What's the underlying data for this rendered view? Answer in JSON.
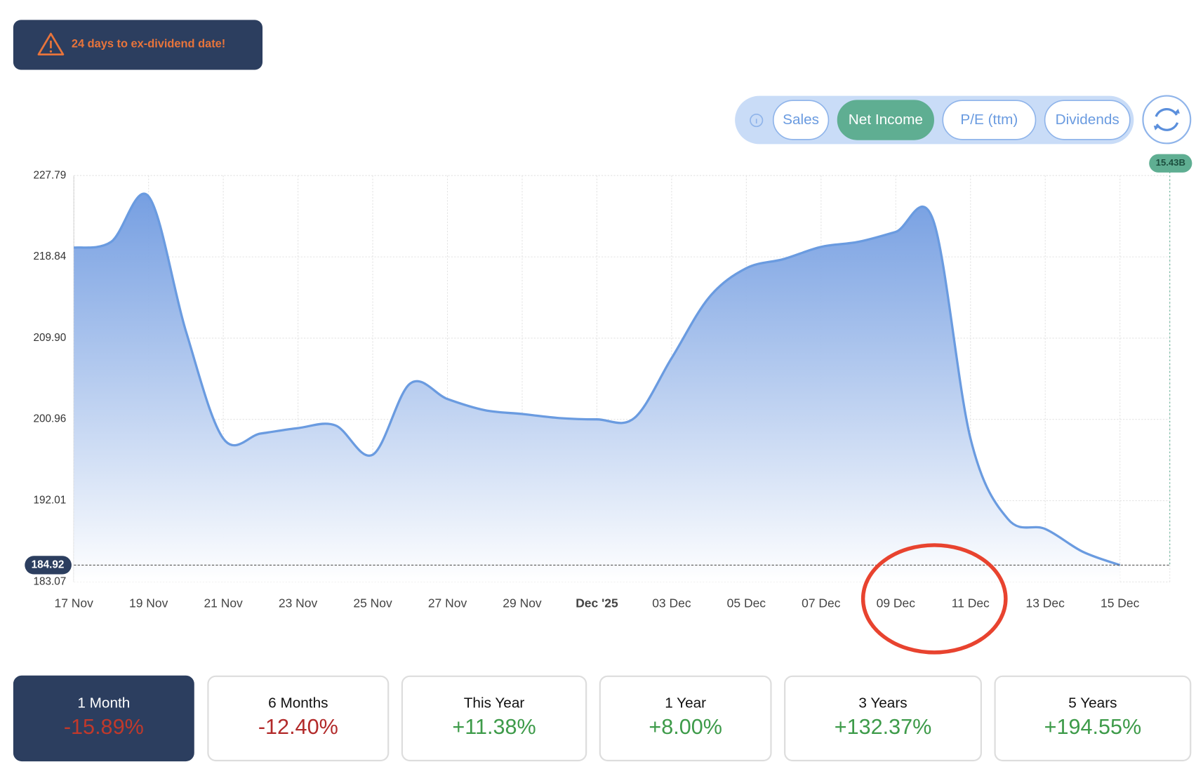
{
  "alert": {
    "text": "24 days to ex-dividend date!"
  },
  "toggles": [
    "Sales",
    "Net Income",
    "P/E (ttm)",
    "Dividends"
  ],
  "active_toggle": 1,
  "chart_data": {
    "type": "area",
    "categories": [
      "17 Nov",
      null,
      "19 Nov",
      null,
      "21 Nov",
      null,
      "23 Nov",
      null,
      "25 Nov",
      null,
      "27 Nov",
      null,
      "29 Nov",
      null,
      "Dec '25",
      null,
      "03 Dec",
      null,
      "05 Dec",
      null,
      "07 Dec",
      null,
      "09 Dec",
      null,
      "11 Dec",
      null,
      "13 Dec",
      null,
      "15 Dec"
    ],
    "values": [
      219.86,
      220.5,
      225.5,
      210.66,
      198.85,
      199.4,
      200.0,
      200.3,
      197.07,
      204.9,
      203.2,
      201.97,
      201.55,
      201.1,
      200.96,
      201.1,
      207.7,
      214.37,
      217.6,
      218.6,
      219.94,
      220.5,
      221.6,
      222.9,
      198.85,
      190.0,
      188.9,
      186.4,
      184.92
    ],
    "color": "#6a9be0",
    "ylim": [
      183.07,
      227.79
    ],
    "yticks": [
      183.07,
      192.01,
      200.96,
      {
        "value": 209.9,
        "label": "209.90"
      },
      218.84,
      227.79
    ],
    "grid": true,
    "last_value": 184.92,
    "marker_label": "15.43B"
  },
  "periods": [
    {
      "label": "1 Month",
      "change": "-15.89%"
    },
    {
      "label": "6 Months",
      "change": "-12.40%"
    },
    {
      "label": "This Year",
      "change": "+11.38%"
    },
    {
      "label": "1 Year",
      "change": "+8.00%"
    },
    {
      "label": "3 Years",
      "change": "+132.37%"
    },
    {
      "label": "5 Years",
      "change": "+194.55%"
    }
  ],
  "active_period": 0
}
